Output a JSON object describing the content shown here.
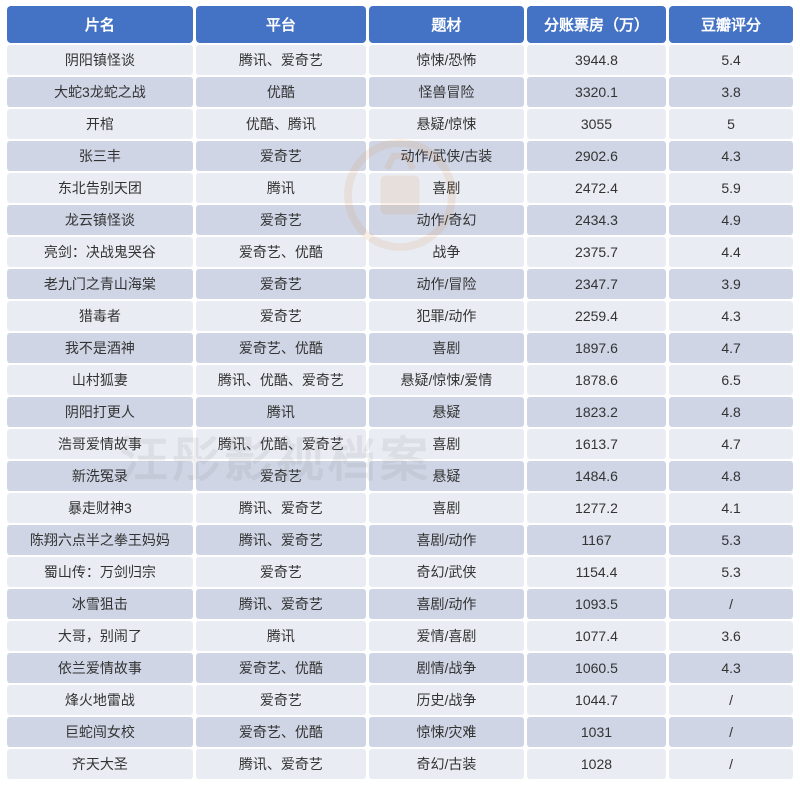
{
  "table": {
    "type": "table",
    "header_bg": "#4472c4",
    "header_text_color": "#ffffff",
    "row_odd_bg": "#e9ecf3",
    "row_even_bg": "#cfd5e5",
    "cell_text_color": "#333333",
    "header_fontsize": 15,
    "cell_fontsize": 14,
    "border_radius": 4,
    "columns": [
      {
        "key": "title",
        "label": "片名",
        "width": "24%"
      },
      {
        "key": "platform",
        "label": "平台",
        "width": "22%"
      },
      {
        "key": "genre",
        "label": "题材",
        "width": "20%"
      },
      {
        "key": "revenue",
        "label": "分账票房（万）",
        "width": "18%"
      },
      {
        "key": "douban",
        "label": "豆瓣评分",
        "width": "16%"
      }
    ],
    "rows": [
      [
        "阴阳镇怪谈",
        "腾讯、爱奇艺",
        "惊悚/恐怖",
        "3944.8",
        "5.4"
      ],
      [
        "大蛇3龙蛇之战",
        "优酷",
        "怪兽冒险",
        "3320.1",
        "3.8"
      ],
      [
        "开棺",
        "优酷、腾讯",
        "悬疑/惊悚",
        "3055",
        "5"
      ],
      [
        "张三丰",
        "爱奇艺",
        "动作/武侠/古装",
        "2902.6",
        "4.3"
      ],
      [
        "东北告别天团",
        "腾讯",
        "喜剧",
        "2472.4",
        "5.9"
      ],
      [
        "龙云镇怪谈",
        "爱奇艺",
        "动作/奇幻",
        "2434.3",
        "4.9"
      ],
      [
        "亮剑：决战鬼哭谷",
        "爱奇艺、优酷",
        "战争",
        "2375.7",
        "4.4"
      ],
      [
        "老九门之青山海棠",
        "爱奇艺",
        "动作/冒险",
        "2347.7",
        "3.9"
      ],
      [
        "猎毒者",
        "爱奇艺",
        "犯罪/动作",
        "2259.4",
        "4.3"
      ],
      [
        "我不是酒神",
        "爱奇艺、优酷",
        "喜剧",
        "1897.6",
        "4.7"
      ],
      [
        "山村狐妻",
        "腾讯、优酷、爱奇艺",
        "悬疑/惊悚/爱情",
        "1878.6",
        "6.5"
      ],
      [
        "阴阳打更人",
        "腾讯",
        "悬疑",
        "1823.2",
        "4.8"
      ],
      [
        "浩哥爱情故事",
        "腾讯、优酷、爱奇艺",
        "喜剧",
        "1613.7",
        "4.7"
      ],
      [
        "新洗冤录",
        "爱奇艺",
        "悬疑",
        "1484.6",
        "4.8"
      ],
      [
        "暴走财神3",
        "腾讯、爱奇艺",
        "喜剧",
        "1277.2",
        "4.1"
      ],
      [
        "陈翔六点半之拳王妈妈",
        "腾讯、爱奇艺",
        "喜剧/动作",
        "1167",
        "5.3"
      ],
      [
        "蜀山传：万剑归宗",
        "爱奇艺",
        "奇幻/武侠",
        "1154.4",
        "5.3"
      ],
      [
        "冰雪狙击",
        "腾讯、爱奇艺",
        "喜剧/动作",
        "1093.5",
        "/"
      ],
      [
        "大哥，别闹了",
        "腾讯",
        "爱情/喜剧",
        "1077.4",
        "3.6"
      ],
      [
        "依兰爱情故事",
        "爱奇艺、优酷",
        "剧情/战争",
        "1060.5",
        "4.3"
      ],
      [
        "烽火地雷战",
        "爱奇艺",
        "历史/战争",
        "1044.7",
        "/"
      ],
      [
        "巨蛇闯女校",
        "爱奇艺、优酷",
        "惊悚/灾难",
        "1031",
        "/"
      ],
      [
        "齐天大圣",
        "腾讯、爱奇艺",
        "奇幻/古装",
        "1028",
        "/"
      ]
    ]
  },
  "watermark": {
    "text": "汪彤影视档案",
    "logo_color": "#d8863a",
    "text_color_rgba": "rgba(120,120,120,0.12)",
    "fontsize": 48
  }
}
